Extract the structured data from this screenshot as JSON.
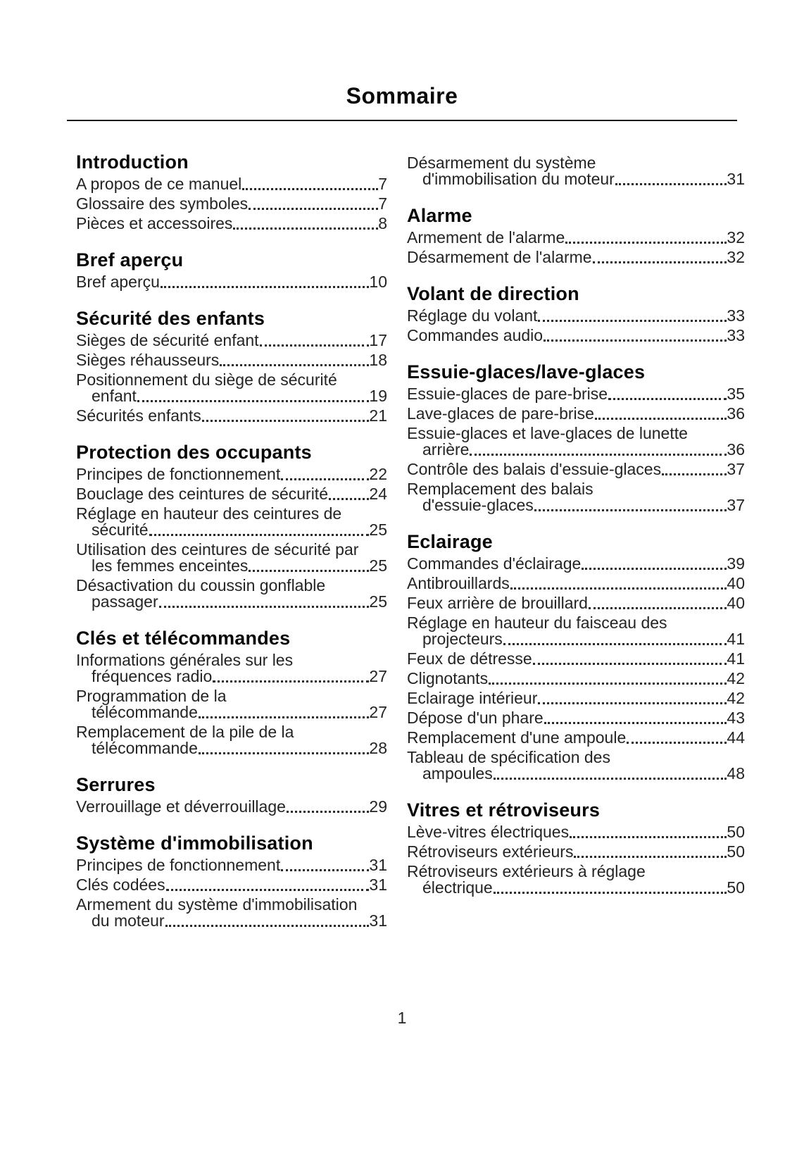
{
  "page": {
    "title": "Sommaire",
    "page_number": "1"
  },
  "toc": {
    "columns": [
      {
        "side": "left",
        "sections": [
          {
            "heading": "Introduction",
            "entries": [
              {
                "label": "A propos de ce manuel",
                "page": "7"
              },
              {
                "label": "Glossaire des symboles",
                "page": "7"
              },
              {
                "label": "Pièces et accessoires",
                "page": "8"
              }
            ]
          },
          {
            "heading": "Bref aperçu",
            "entries": [
              {
                "label": "Bref aperçu",
                "page": "10"
              }
            ]
          },
          {
            "heading": "Sécurité des enfants",
            "entries": [
              {
                "label": "Sièges de sécurité enfant",
                "page": "17"
              },
              {
                "label": "Sièges réhausseurs",
                "page": "18"
              },
              {
                "label": "Positionnement du siège de sécurité",
                "wrap": "enfant",
                "page": "19"
              },
              {
                "label": "Sécurités enfants",
                "page": "21"
              }
            ]
          },
          {
            "heading": "Protection des occupants",
            "entries": [
              {
                "label": "Principes de fonctionnement",
                "page": "22"
              },
              {
                "label": "Bouclage des ceintures de sécurité",
                "page": "24"
              },
              {
                "label": "Réglage en hauteur des ceintures de",
                "wrap": "sécurité",
                "page": "25"
              },
              {
                "label": "Utilisation des ceintures de sécurité par",
                "wrap": "les femmes enceintes",
                "page": "25"
              },
              {
                "label": "Désactivation du coussin gonflable",
                "wrap": "passager",
                "page": "25"
              }
            ]
          },
          {
            "heading": "Clés et télécommandes",
            "entries": [
              {
                "label": "Informations générales sur les",
                "wrap": "fréquences radio",
                "page": "27"
              },
              {
                "label": "Programmation de la",
                "wrap": "télécommande",
                "page": "27"
              },
              {
                "label": "Remplacement de la pile de la",
                "wrap": "télécommande",
                "page": "28"
              }
            ]
          },
          {
            "heading": "Serrures",
            "entries": [
              {
                "label": "Verrouillage et déverrouillage",
                "page": "29"
              }
            ]
          },
          {
            "heading": "Système d'immobilisation",
            "entries": [
              {
                "label": "Principes de fonctionnement",
                "page": "31"
              },
              {
                "label": "Clés codées",
                "page": "31"
              },
              {
                "label": "Armement du système d'immobilisation",
                "wrap": "du moteur",
                "page": "31"
              }
            ]
          }
        ]
      },
      {
        "side": "right",
        "sections": [
          {
            "heading": "",
            "entries": [
              {
                "label": "Désarmement du système",
                "wrap": "d'immobilisation du moteur",
                "page": "31"
              }
            ]
          },
          {
            "heading": "Alarme",
            "entries": [
              {
                "label": "Armement de l'alarme",
                "page": "32"
              },
              {
                "label": "Désarmement de l'alarme",
                "page": "32"
              }
            ]
          },
          {
            "heading": "Volant de direction",
            "entries": [
              {
                "label": "Réglage du volant",
                "page": "33"
              },
              {
                "label": "Commandes audio",
                "page": "33"
              }
            ]
          },
          {
            "heading": "Essuie-glaces/lave-glaces",
            "entries": [
              {
                "label": "Essuie-glaces de pare-brise",
                "page": "35"
              },
              {
                "label": "Lave-glaces de pare-brise",
                "page": "36"
              },
              {
                "label": "Essuie-glaces et lave-glaces de lunette",
                "wrap": "arrière",
                "page": "36"
              },
              {
                "label": "Contrôle des balais d'essuie-glaces",
                "page": "37"
              },
              {
                "label": "Remplacement des balais",
                "wrap": "d'essuie-glaces",
                "page": "37"
              }
            ]
          },
          {
            "heading": "Eclairage",
            "entries": [
              {
                "label": "Commandes d'éclairage",
                "page": "39"
              },
              {
                "label": "Antibrouillards",
                "page": "40"
              },
              {
                "label": "Feux arrière de brouillard",
                "page": "40"
              },
              {
                "label": "Réglage en hauteur du faisceau des",
                "wrap": "projecteurs",
                "page": "41"
              },
              {
                "label": "Feux de détresse",
                "page": "41"
              },
              {
                "label": "Clignotants",
                "page": "42"
              },
              {
                "label": "Eclairage intérieur",
                "page": "42"
              },
              {
                "label": "Dépose d'un phare",
                "page": "43"
              },
              {
                "label": "Remplacement d'une ampoule",
                "page": "44"
              },
              {
                "label": "Tableau de spécification des",
                "wrap": "ampoules",
                "page": "48"
              }
            ]
          },
          {
            "heading": "Vitres et rétroviseurs",
            "entries": [
              {
                "label": "Lève-vitres électriques",
                "page": "50"
              },
              {
                "label": "Rétroviseurs extérieurs",
                "page": "50"
              },
              {
                "label": "Rétroviseurs extérieurs à réglage",
                "wrap": "électrique",
                "page": "50"
              }
            ]
          }
        ]
      }
    ]
  }
}
